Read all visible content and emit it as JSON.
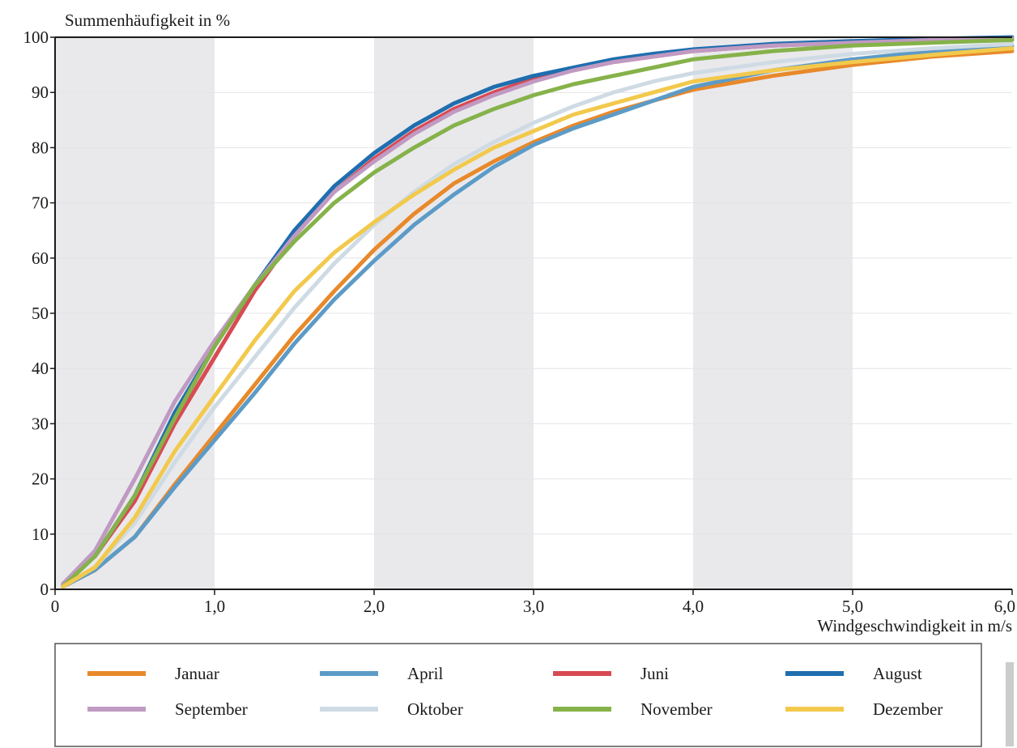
{
  "chart_data": {
    "type": "line",
    "title": "",
    "ylabel": "Summenhäufigkeit in %",
    "xlabel": "Windgeschwindigkeit in m/s",
    "xlim": [
      0,
      6
    ],
    "ylim": [
      0,
      100
    ],
    "x_ticks": [
      0,
      1,
      2,
      3,
      4,
      5,
      6
    ],
    "x_tick_labels": [
      "0",
      "1,0",
      "2,0",
      "3,0",
      "4,0",
      "5,0",
      "6,0"
    ],
    "y_ticks": [
      0,
      10,
      20,
      30,
      40,
      50,
      60,
      70,
      80,
      90,
      100
    ],
    "y_tick_labels": [
      "0",
      "10",
      "20",
      "30",
      "40",
      "50",
      "60",
      "70",
      "80",
      "90",
      "100"
    ],
    "shaded_x_bands": [
      [
        0,
        1
      ],
      [
        2,
        3
      ],
      [
        4,
        5
      ]
    ],
    "grid": true,
    "legend_position": "bottom",
    "x": [
      0.05,
      0.25,
      0.5,
      0.75,
      1.0,
      1.25,
      1.5,
      1.75,
      2.0,
      2.25,
      2.5,
      2.75,
      3.0,
      3.25,
      3.5,
      3.75,
      4.0,
      4.5,
      5.0,
      5.5,
      6.0
    ],
    "series": [
      {
        "name": "Januar",
        "color": "#e8892a",
        "values": [
          0.5,
          3.5,
          9.5,
          19,
          28,
          37,
          46,
          54,
          61.5,
          68,
          73.5,
          77.5,
          81,
          84,
          86.5,
          88.5,
          90.5,
          93,
          95,
          96.5,
          97.5
        ]
      },
      {
        "name": "April",
        "color": "#5d9bc7",
        "values": [
          0.5,
          3.5,
          9.5,
          18.5,
          27,
          35.5,
          44.5,
          52.5,
          59.5,
          66,
          71.5,
          76.5,
          80.5,
          83.5,
          86,
          88.5,
          91,
          94,
          96,
          97.5,
          98.5
        ]
      },
      {
        "name": "Juni",
        "color": "#d94a53",
        "values": [
          1,
          6,
          16,
          30,
          42,
          54,
          64,
          72,
          78,
          83,
          87,
          90,
          92.5,
          94,
          95.5,
          96.5,
          97.5,
          98.5,
          99,
          99.5,
          99.8
        ]
      },
      {
        "name": "August",
        "color": "#1f6eaf",
        "values": [
          0.8,
          6,
          17,
          32,
          44,
          55,
          65,
          73,
          79,
          84,
          88,
          91,
          93,
          94.5,
          96,
          97,
          97.8,
          98.8,
          99.3,
          99.7,
          100
        ]
      },
      {
        "name": "September",
        "color": "#c09ac2",
        "values": [
          1,
          7,
          20,
          34,
          45,
          55,
          64,
          72,
          77.5,
          82.5,
          86.5,
          89.5,
          92,
          94,
          95.5,
          96.5,
          97.5,
          98.5,
          99,
          99.5,
          99.8
        ]
      },
      {
        "name": "Oktober",
        "color": "#cfdbe4",
        "values": [
          0.5,
          4,
          12,
          23,
          33,
          42,
          51,
          59,
          66,
          72,
          77,
          81,
          84.5,
          87.5,
          90,
          92,
          93.5,
          95.5,
          97,
          98,
          98.8
        ]
      },
      {
        "name": "November",
        "color": "#86b24a",
        "values": [
          0.5,
          6,
          17,
          31,
          44,
          55,
          63,
          70,
          75.5,
          80,
          84,
          87,
          89.5,
          91.5,
          93,
          94.5,
          96,
          97.5,
          98.5,
          99,
          99.5
        ]
      },
      {
        "name": "Dezember",
        "color": "#f2c94c",
        "values": [
          0.5,
          4,
          13,
          25,
          35,
          45,
          54,
          61,
          66.5,
          71.5,
          76,
          80,
          83,
          86,
          88,
          90,
          92,
          94,
          95.5,
          96.8,
          98
        ]
      }
    ]
  }
}
